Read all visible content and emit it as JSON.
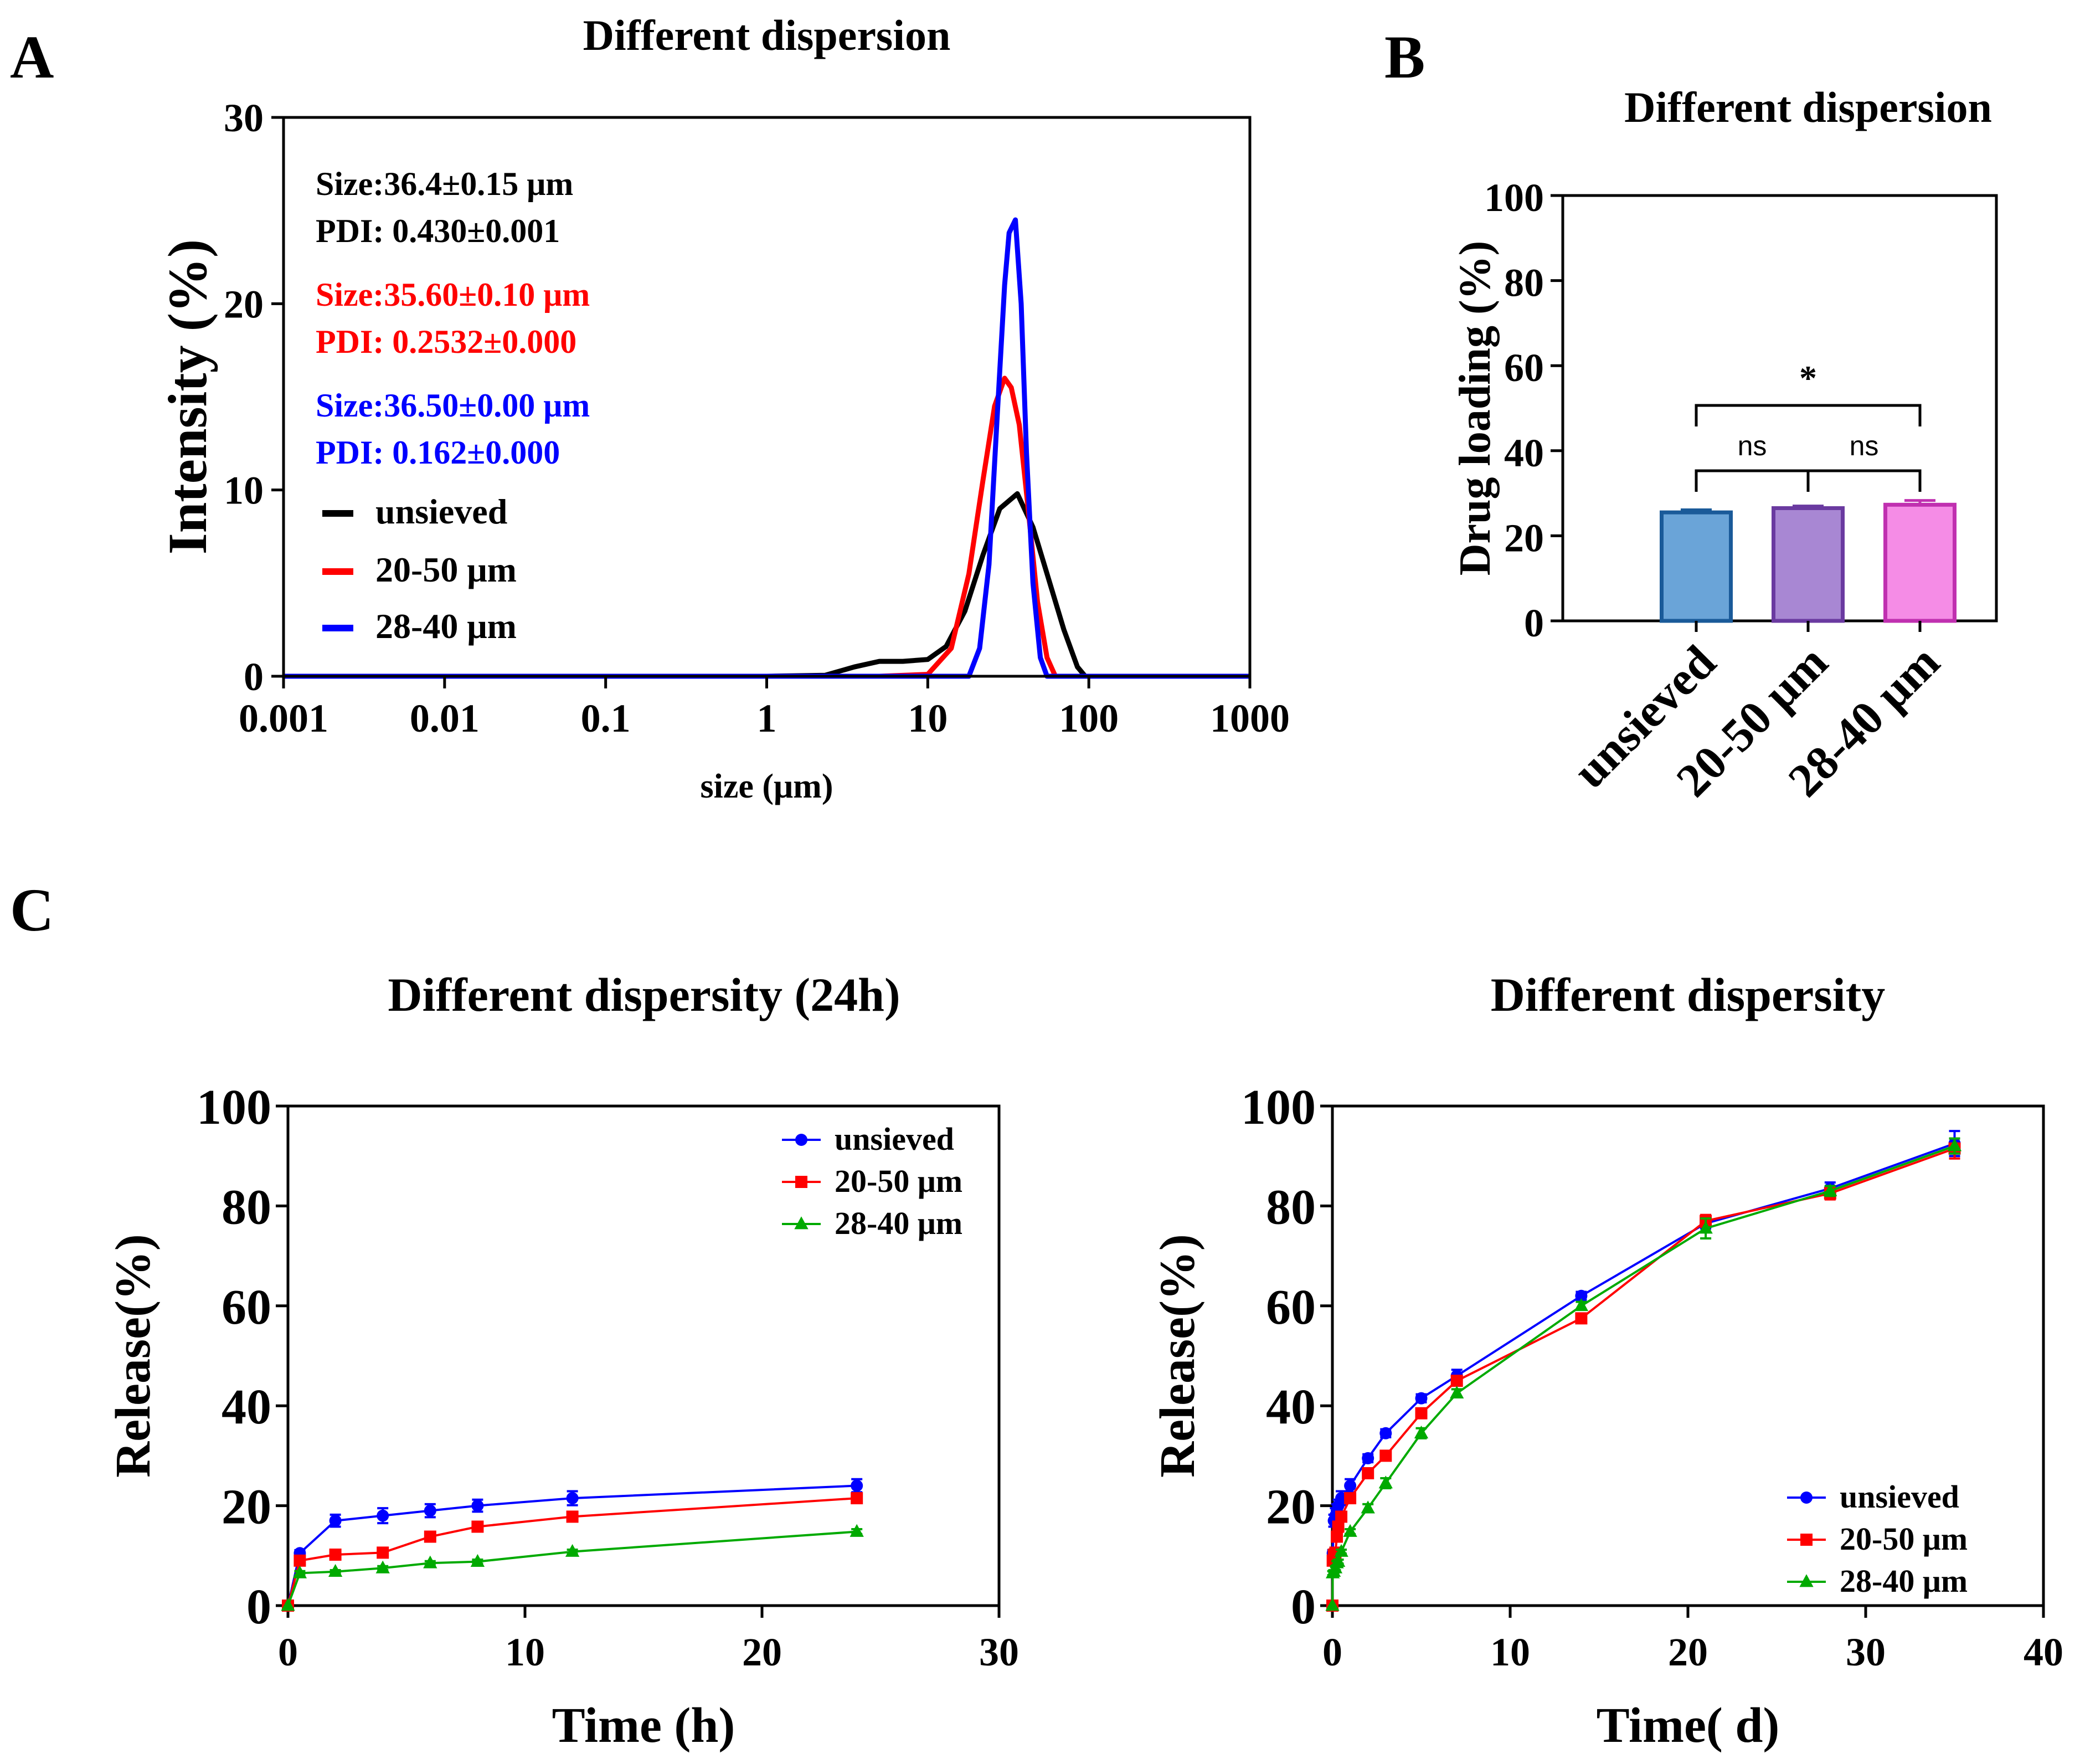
{
  "panel_labels": {
    "a": "A",
    "b": "B",
    "c": "C"
  },
  "chart_data": [
    {
      "id": "A",
      "type": "line",
      "title": "Different dispersion",
      "xlabel": "size (μm)",
      "ylabel": "Intensity (%)",
      "xscale": "log",
      "xlim": [
        0.001,
        1000
      ],
      "ylim": [
        0,
        30
      ],
      "xticks": [
        0.001,
        0.01,
        0.1,
        1,
        10,
        100,
        1000
      ],
      "xtick_labels": [
        "0.001",
        "0.01",
        "0.1",
        "1",
        "10",
        "100",
        "1000"
      ],
      "yticks": [
        0,
        10,
        20,
        30
      ],
      "ytick_labels": [
        "0",
        "10",
        "20",
        "30"
      ],
      "annotations": [
        {
          "text": "Size:36.4±0.15 μm",
          "color": "#000000"
        },
        {
          "text": "PDI: 0.430±0.001",
          "color": "#000000"
        },
        {
          "text": "Size:35.60±0.10 μm",
          "color": "#ff0000"
        },
        {
          "text": "PDI: 0.2532±0.000",
          "color": "#ff0000"
        },
        {
          "text": "Size:36.50±0.00 μm",
          "color": "#0000ff"
        },
        {
          "text": "PDI: 0.162±0.000",
          "color": "#0000ff"
        }
      ],
      "legend_position": "left",
      "series": [
        {
          "name": "unsieved",
          "color": "#000000",
          "x": [
            0.001,
            1,
            2.3,
            3.5,
            5,
            7,
            10,
            13,
            17,
            22,
            28,
            36,
            45,
            55,
            70,
            85,
            95,
            1000
          ],
          "y": [
            0,
            0,
            0.05,
            0.5,
            0.8,
            0.8,
            0.9,
            1.6,
            3.5,
            6.5,
            9.0,
            9.8,
            8.0,
            5.5,
            2.5,
            0.5,
            0,
            0
          ]
        },
        {
          "name": "20-50 μm",
          "color": "#ff0000",
          "x": [
            0.001,
            2,
            5,
            10,
            14,
            18,
            22,
            26,
            30,
            33,
            37,
            42,
            48,
            55,
            62,
            1000
          ],
          "y": [
            0,
            0,
            0,
            0.1,
            1.5,
            5.5,
            10.5,
            14.5,
            16.0,
            15.5,
            13.5,
            9.0,
            4.0,
            1.0,
            0,
            0
          ]
        },
        {
          "name": "28-40 μm",
          "color": "#0000ff",
          "x": [
            0.001,
            10,
            18,
            21,
            24,
            27,
            30,
            32,
            35,
            38,
            41,
            45,
            50,
            55,
            1000
          ],
          "y": [
            0,
            0,
            0,
            1.5,
            6,
            14,
            21,
            23.8,
            24.5,
            20,
            12,
            5,
            1,
            0,
            0
          ]
        }
      ]
    },
    {
      "id": "B",
      "type": "bar",
      "title": "Different dispersion",
      "xlabel": "",
      "ylabel": "Drug loading (%)",
      "ylim": [
        0,
        100
      ],
      "yticks": [
        0,
        20,
        40,
        60,
        80,
        100
      ],
      "ytick_labels": [
        "0",
        "20",
        "40",
        "60",
        "80",
        "100"
      ],
      "categories": [
        "unsieved",
        "20-50 μm",
        "28-40 μm"
      ],
      "values": [
        25.5,
        26.5,
        27.3
      ],
      "errors": [
        0.6,
        0.5,
        1.0
      ],
      "fill_colors": [
        "#6aa4d8",
        "#a887d3",
        "#f58ce6"
      ],
      "edge_colors": [
        "#1a5a99",
        "#6a3aa0",
        "#c030b0"
      ],
      "significance": [
        {
          "from": 0,
          "to": 1,
          "label": "ns"
        },
        {
          "from": 1,
          "to": 2,
          "label": "ns"
        },
        {
          "from": 0,
          "to": 2,
          "label": "*"
        }
      ]
    },
    {
      "id": "C1",
      "type": "line",
      "title": "Different dispersity (24h)",
      "xlabel": "Time (h)",
      "ylabel": "Release(%)",
      "xlim": [
        0,
        30
      ],
      "ylim": [
        0,
        100
      ],
      "xticks": [
        0,
        10,
        20,
        30
      ],
      "xtick_labels": [
        "0",
        "10",
        "20",
        "30"
      ],
      "yticks": [
        0,
        20,
        40,
        60,
        80,
        100
      ],
      "ytick_labels": [
        "0",
        "20",
        "40",
        "60",
        "80",
        "100"
      ],
      "legend_position": "top-right",
      "x": [
        0,
        0.5,
        2,
        4,
        6,
        8,
        12,
        24
      ],
      "series": [
        {
          "name": "unsieved",
          "color": "#0000ff",
          "marker": "circle",
          "values": [
            0,
            10.5,
            17.0,
            18.0,
            19.0,
            20.0,
            21.5,
            24.0
          ],
          "errors": [
            0,
            0.6,
            1.2,
            1.5,
            1.3,
            1.2,
            1.4,
            1.3
          ]
        },
        {
          "name": "20-50 μm",
          "color": "#ff0000",
          "marker": "square",
          "values": [
            0,
            9.0,
            10.2,
            10.6,
            13.8,
            15.8,
            17.8,
            21.5
          ],
          "errors": [
            0,
            0.5,
            0.4,
            0.5,
            0.6,
            0.5,
            0.6,
            0.7
          ]
        },
        {
          "name": "28-40 μm",
          "color": "#00aa00",
          "marker": "triangle",
          "values": [
            0,
            6.5,
            6.8,
            7.5,
            8.5,
            8.8,
            10.8,
            14.8
          ],
          "errors": [
            0,
            0.4,
            0.3,
            0.4,
            0.4,
            0.4,
            0.4,
            0.5
          ]
        }
      ]
    },
    {
      "id": "C2",
      "type": "line",
      "title": "Different dispersity",
      "xlabel": "Time( d)",
      "ylabel": "Release(%)",
      "xlim": [
        0,
        40
      ],
      "ylim": [
        0,
        100
      ],
      "xticks": [
        0,
        10,
        20,
        30,
        40
      ],
      "xtick_labels": [
        "0",
        "10",
        "20",
        "30",
        "40"
      ],
      "yticks": [
        0,
        20,
        40,
        60,
        80,
        100
      ],
      "ytick_labels": [
        "0",
        "20",
        "40",
        "60",
        "80",
        "100"
      ],
      "legend_position": "bottom-right",
      "series": [
        {
          "name": "unsieved",
          "color": "#0000ff",
          "marker": "circle",
          "x": [
            0,
            0.02,
            0.08,
            0.17,
            0.25,
            0.33,
            0.5,
            1,
            2,
            3,
            5,
            7,
            14,
            21,
            28,
            35
          ],
          "values": [
            0,
            10.5,
            17.0,
            18.0,
            19.0,
            20.0,
            21.5,
            24.0,
            29.5,
            34.5,
            41.5,
            46.0,
            62.0,
            76.5,
            83.5,
            92.5
          ],
          "errors": [
            0,
            0.6,
            1.2,
            1.5,
            1.3,
            1.2,
            1.4,
            1.3,
            0.8,
            0.8,
            0.8,
            1.2,
            0.8,
            1.0,
            1.2,
            2.5
          ]
        },
        {
          "name": "20-50 μm",
          "color": "#ff0000",
          "marker": "square",
          "x": [
            0,
            0.02,
            0.08,
            0.17,
            0.25,
            0.33,
            0.5,
            1,
            2,
            3,
            5,
            7,
            14,
            21,
            28,
            35
          ],
          "values": [
            0,
            9.0,
            10.2,
            10.6,
            13.8,
            15.8,
            17.8,
            21.5,
            26.5,
            30.0,
            38.5,
            45.0,
            57.5,
            77.0,
            82.5,
            91.5
          ],
          "errors": [
            0,
            0.5,
            0.4,
            0.5,
            0.6,
            0.5,
            0.6,
            0.7,
            0.8,
            0.8,
            0.8,
            0.8,
            0.8,
            1.2,
            1.2,
            2.0
          ]
        },
        {
          "name": "28-40 μm",
          "color": "#00aa00",
          "marker": "triangle",
          "x": [
            0,
            0.02,
            0.08,
            0.17,
            0.25,
            0.33,
            0.5,
            1,
            2,
            3,
            5,
            7,
            14,
            21,
            28,
            35
          ],
          "values": [
            0,
            6.5,
            6.8,
            7.5,
            8.5,
            8.8,
            10.8,
            14.8,
            19.5,
            24.5,
            34.5,
            42.5,
            60.0,
            75.5,
            83.0,
            92.0
          ],
          "errors": [
            0,
            0.4,
            0.3,
            0.4,
            0.4,
            0.4,
            0.4,
            0.5,
            0.8,
            1.0,
            1.0,
            0.8,
            0.8,
            2.0,
            1.0,
            1.5
          ]
        }
      ]
    }
  ]
}
